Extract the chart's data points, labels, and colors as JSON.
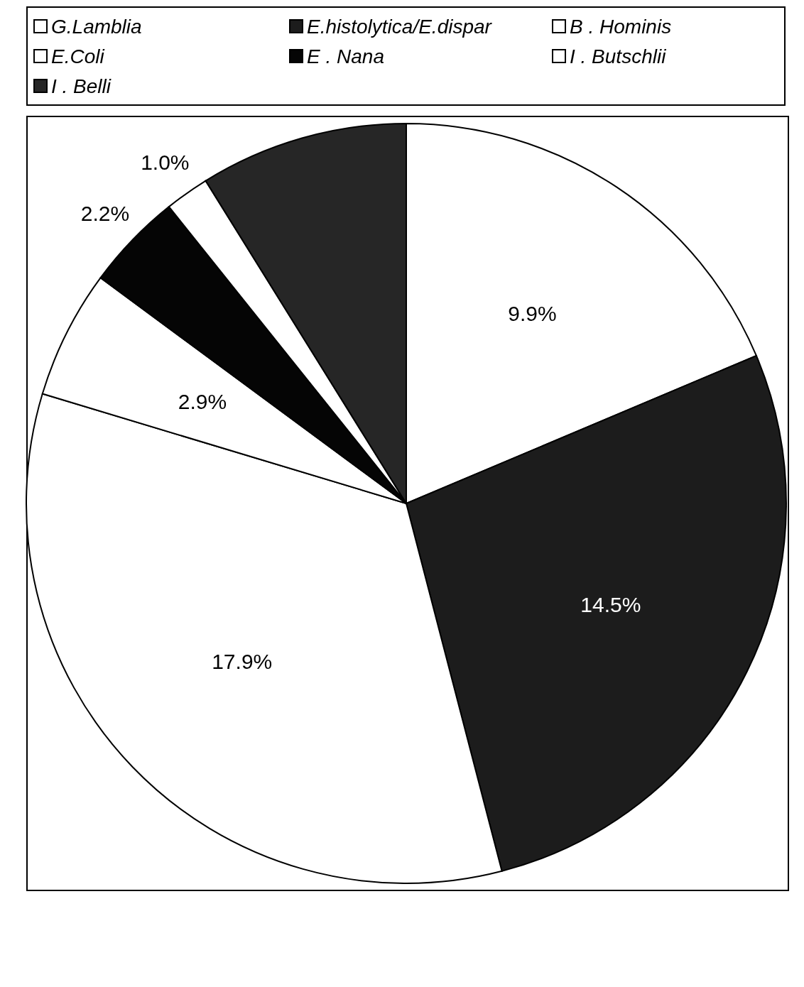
{
  "chart_data": {
    "type": "pie",
    "categories": [
      "G.Lamblia",
      "E.histolytica/E.dispar",
      "B . Hominis",
      "E.Coli",
      "E . Nana",
      "I . Butschlii",
      "I . Belli"
    ],
    "values": [
      9.9,
      14.5,
      17.9,
      2.9,
      2.2,
      1.0,
      4.7
    ],
    "value_labels": [
      "9.9%",
      "14.5%",
      "17.9%",
      "2.9%",
      "2.2%",
      "1.0%",
      null
    ],
    "colors": [
      "#ffffff",
      "#1c1c1c",
      "#ffffff",
      "#ffffff",
      "#050505",
      "#ffffff",
      "#262626"
    ],
    "legend": "top"
  }
}
